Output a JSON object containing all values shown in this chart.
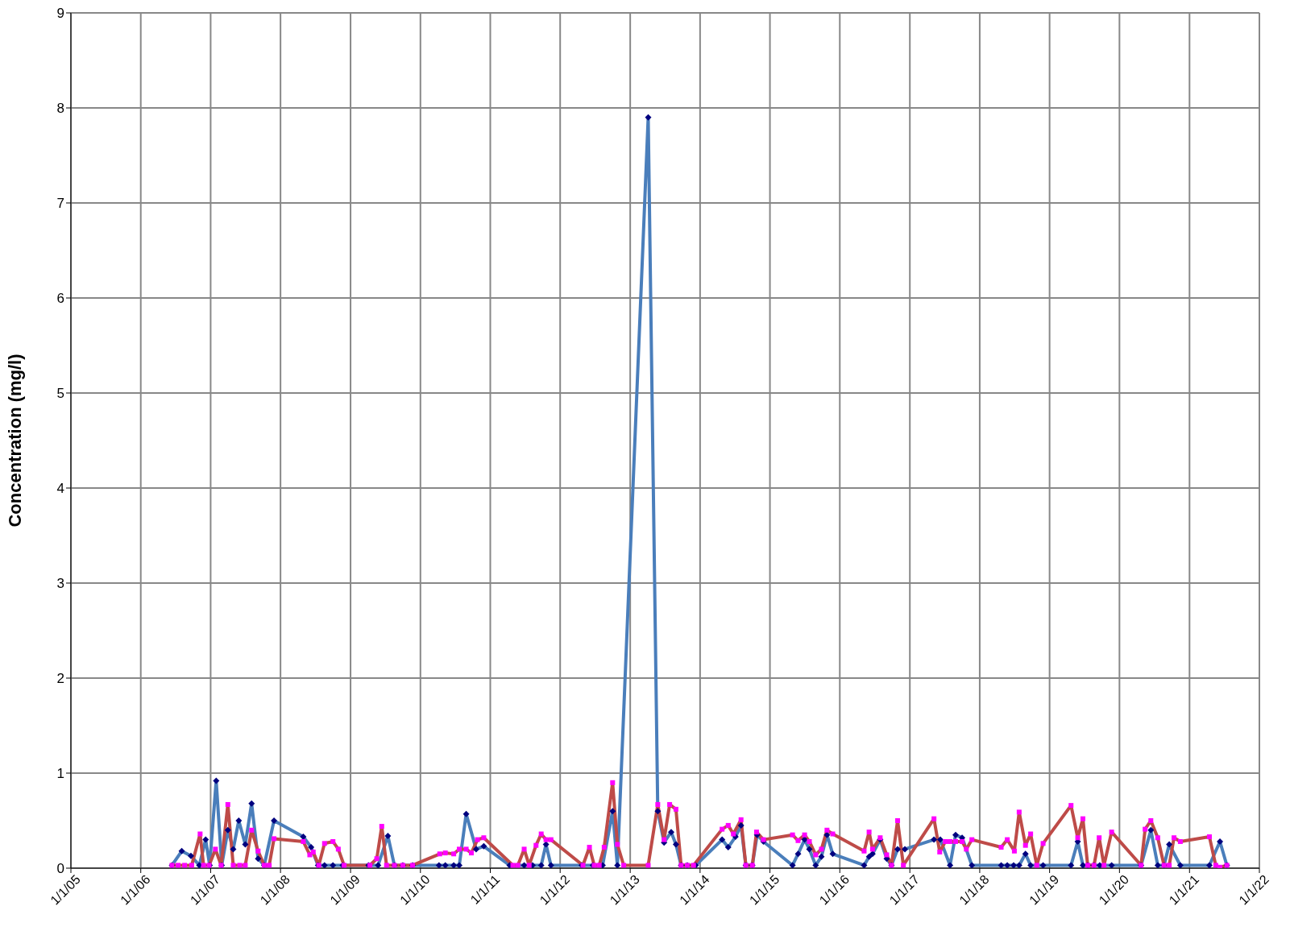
{
  "chart_data": {
    "type": "line",
    "ylabel": "Concentration (mg/l)",
    "xlim": [
      "2005-01-01",
      "2022-01-01"
    ],
    "xticks": [
      {
        "value": "2005-01-01",
        "label": "1/1/05"
      },
      {
        "value": "2006-01-01",
        "label": "1/1/06"
      },
      {
        "value": "2007-01-01",
        "label": "1/1/07"
      },
      {
        "value": "2008-01-01",
        "label": "1/1/08"
      },
      {
        "value": "2009-01-01",
        "label": "1/1/09"
      },
      {
        "value": "2010-01-01",
        "label": "1/1/10"
      },
      {
        "value": "2011-01-01",
        "label": "1/1/11"
      },
      {
        "value": "2012-01-01",
        "label": "1/1/12"
      },
      {
        "value": "2013-01-01",
        "label": "1/1/13"
      },
      {
        "value": "2014-01-01",
        "label": "1/1/14"
      },
      {
        "value": "2015-01-01",
        "label": "1/1/15"
      },
      {
        "value": "2016-01-01",
        "label": "1/1/16"
      },
      {
        "value": "2017-01-01",
        "label": "1/1/17"
      },
      {
        "value": "2018-01-01",
        "label": "1/1/18"
      },
      {
        "value": "2019-01-01",
        "label": "1/1/19"
      },
      {
        "value": "2020-01-01",
        "label": "1/1/20"
      },
      {
        "value": "2021-01-01",
        "label": "1/1/21"
      },
      {
        "value": "2022-01-01",
        "label": "1/1/22"
      }
    ],
    "ylim": [
      0,
      9
    ],
    "yticks": [
      0,
      1,
      2,
      3,
      4,
      5,
      6,
      7,
      8,
      9
    ],
    "grid": true,
    "line_style": "solid",
    "series": [
      {
        "color": "#4a7ebb",
        "marker": "diamond",
        "x": [
          "2006-06-13",
          "2006-08-03",
          "2006-09-20",
          "2006-11-03",
          "2006-12-06",
          "2006-12-27",
          "2007-01-30",
          "2007-02-28",
          "2007-04-01",
          "2007-04-29",
          "2007-05-28",
          "2007-07-01",
          "2007-08-03",
          "2007-09-06",
          "2007-10-08",
          "2007-11-28",
          "2008-04-29",
          "2008-06-09",
          "2008-07-15",
          "2008-08-18",
          "2008-10-01",
          "2008-11-21",
          "2009-04-05",
          "2009-05-25",
          "2009-07-15",
          "2009-08-18",
          "2009-10-01",
          "2009-11-21",
          "2010-04-08",
          "2010-05-11",
          "2010-06-24",
          "2010-07-23",
          "2010-08-28",
          "2010-10-19",
          "2010-11-28",
          "2011-04-12",
          "2011-06-27",
          "2011-08-10",
          "2011-09-24",
          "2011-10-19",
          "2011-11-14",
          "2012-04-23",
          "2012-06-20",
          "2012-08-10",
          "2012-10-01",
          "2012-10-26",
          "2013-04-05",
          "2013-05-25",
          "2013-06-27",
          "2013-08-03",
          "2013-08-28",
          "2013-09-24",
          "2013-10-26",
          "2013-12-09",
          "2014-04-26",
          "2014-05-28",
          "2014-07-05",
          "2014-08-03",
          "2014-08-28",
          "2014-10-01",
          "2014-10-26",
          "2014-11-28",
          "2015-04-29",
          "2015-05-28",
          "2015-07-01",
          "2015-07-26",
          "2015-08-28",
          "2015-09-27",
          "2015-10-26",
          "2015-11-25",
          "2016-05-07",
          "2016-06-02",
          "2016-06-20",
          "2016-07-30",
          "2016-09-02",
          "2016-09-27",
          "2016-10-29",
          "2016-12-06",
          "2017-05-07",
          "2017-06-09",
          "2017-07-30",
          "2017-08-28",
          "2017-10-01",
          "2017-11-21",
          "2018-04-23",
          "2018-05-25",
          "2018-06-27",
          "2018-07-26",
          "2018-08-28",
          "2018-09-24",
          "2018-11-28",
          "2019-04-23",
          "2019-05-28",
          "2019-06-24",
          "2019-07-19",
          "2019-08-21",
          "2019-09-20",
          "2019-11-21",
          "2020-04-23",
          "2020-06-13",
          "2020-07-19",
          "2020-08-21",
          "2020-09-17",
          "2020-11-14",
          "2021-04-15",
          "2021-06-09",
          "2021-07-15"
        ],
        "values": [
          0.03,
          0.18,
          0.13,
          0.03,
          0.3,
          0.03,
          0.92,
          0.03,
          0.4,
          0.2,
          0.5,
          0.25,
          0.68,
          0.1,
          0.03,
          0.5,
          0.33,
          0.22,
          0.03,
          0.03,
          0.03,
          0.03,
          0.03,
          0.03,
          0.34,
          0.03,
          0.03,
          0.03,
          0.03,
          0.03,
          0.03,
          0.03,
          0.57,
          0.2,
          0.23,
          0.03,
          0.03,
          0.03,
          0.03,
          0.25,
          0.03,
          0.03,
          0.03,
          0.03,
          0.6,
          0.03,
          7.9,
          0.6,
          0.27,
          0.38,
          0.25,
          0.03,
          0.03,
          0.03,
          0.3,
          0.22,
          0.33,
          0.45,
          0.03,
          0.03,
          0.35,
          0.28,
          0.03,
          0.15,
          0.3,
          0.2,
          0.03,
          0.12,
          0.35,
          0.15,
          0.03,
          0.12,
          0.15,
          0.3,
          0.1,
          0.03,
          0.2,
          0.2,
          0.3,
          0.3,
          0.03,
          0.35,
          0.32,
          0.03,
          0.03,
          0.03,
          0.03,
          0.03,
          0.15,
          0.03,
          0.03,
          0.03,
          0.28,
          0.03,
          0.03,
          0.03,
          0.03,
          0.03,
          0.03,
          0.4,
          0.03,
          0.03,
          0.25,
          0.03,
          0.03,
          0.28,
          0.03
        ]
      },
      {
        "color": "#be4b48",
        "marker": "square",
        "x": [
          "2006-06-13",
          "2006-07-15",
          "2006-08-18",
          "2006-09-24",
          "2006-11-07",
          "2006-11-25",
          "2006-12-24",
          "2007-01-26",
          "2007-02-25",
          "2007-04-01",
          "2007-04-29",
          "2007-06-02",
          "2007-07-01",
          "2007-08-03",
          "2007-09-06",
          "2007-10-08",
          "2007-11-03",
          "2007-11-28",
          "2008-04-29",
          "2008-06-02",
          "2008-06-20",
          "2008-07-19",
          "2008-08-18",
          "2008-10-01",
          "2008-10-29",
          "2008-11-28",
          "2009-04-12",
          "2009-05-18",
          "2009-06-13",
          "2009-07-08",
          "2009-08-18",
          "2009-10-01",
          "2009-11-21",
          "2010-04-12",
          "2010-05-11",
          "2010-06-24",
          "2010-07-23",
          "2010-08-28",
          "2010-09-24",
          "2010-10-26",
          "2010-11-28",
          "2011-04-29",
          "2011-05-25",
          "2011-06-27",
          "2011-07-23",
          "2011-08-28",
          "2011-09-24",
          "2011-10-19",
          "2011-11-14",
          "2012-04-29",
          "2012-06-02",
          "2012-06-27",
          "2012-07-23",
          "2012-08-18",
          "2012-10-01",
          "2012-10-26",
          "2012-11-28",
          "2013-04-05",
          "2013-05-25",
          "2013-06-27",
          "2013-07-26",
          "2013-08-28",
          "2013-09-24",
          "2013-10-26",
          "2013-11-28",
          "2014-04-26",
          "2014-05-28",
          "2014-06-24",
          "2014-08-03",
          "2014-08-28",
          "2014-10-01",
          "2014-10-23",
          "2014-11-28",
          "2015-04-29",
          "2015-05-28",
          "2015-07-01",
          "2015-07-26",
          "2015-08-28",
          "2015-09-27",
          "2015-10-26",
          "2015-11-25",
          "2016-05-07",
          "2016-06-02",
          "2016-06-20",
          "2016-07-30",
          "2016-09-02",
          "2016-09-27",
          "2016-10-29",
          "2016-11-28",
          "2017-05-07",
          "2017-06-06",
          "2017-07-05",
          "2017-07-30",
          "2017-08-28",
          "2017-10-01",
          "2017-10-23",
          "2017-11-21",
          "2018-04-23",
          "2018-05-25",
          "2018-07-01",
          "2018-07-26",
          "2018-08-28",
          "2018-09-24",
          "2018-10-26",
          "2018-11-28",
          "2019-04-23",
          "2019-05-28",
          "2019-06-24",
          "2019-07-19",
          "2019-08-21",
          "2019-09-17",
          "2019-10-12",
          "2019-11-21",
          "2020-04-23",
          "2020-05-14",
          "2020-06-13",
          "2020-07-19",
          "2020-08-21",
          "2020-09-17",
          "2020-10-12",
          "2020-11-14",
          "2021-04-15",
          "2021-05-18",
          "2021-06-09",
          "2021-07-15"
        ],
        "values": [
          0.03,
          0.03,
          0.03,
          0.03,
          0.36,
          0.03,
          0.03,
          0.2,
          0.03,
          0.67,
          0.03,
          0.03,
          0.03,
          0.4,
          0.18,
          0.03,
          0.03,
          0.31,
          0.28,
          0.14,
          0.17,
          0.03,
          0.26,
          0.28,
          0.2,
          0.03,
          0.03,
          0.1,
          0.44,
          0.03,
          0.03,
          0.03,
          0.03,
          0.15,
          0.16,
          0.15,
          0.2,
          0.2,
          0.16,
          0.3,
          0.32,
          0.03,
          0.03,
          0.2,
          0.03,
          0.24,
          0.36,
          0.3,
          0.3,
          0.03,
          0.22,
          0.03,
          0.03,
          0.22,
          0.9,
          0.25,
          0.03,
          0.03,
          0.67,
          0.3,
          0.67,
          0.62,
          0.03,
          0.03,
          0.03,
          0.41,
          0.45,
          0.36,
          0.51,
          0.03,
          0.03,
          0.38,
          0.3,
          0.35,
          0.29,
          0.35,
          0.28,
          0.14,
          0.2,
          0.4,
          0.36,
          0.18,
          0.38,
          0.2,
          0.32,
          0.14,
          0.03,
          0.5,
          0.03,
          0.52,
          0.17,
          0.28,
          0.28,
          0.28,
          0.28,
          0.2,
          0.3,
          0.22,
          0.3,
          0.18,
          0.59,
          0.24,
          0.36,
          0.03,
          0.26,
          0.66,
          0.32,
          0.52,
          0.03,
          0.03,
          0.32,
          0.03,
          0.38,
          0.03,
          0.41,
          0.5,
          0.32,
          0.03,
          0.03,
          0.32,
          0.28,
          0.33,
          0.03,
          0.01,
          0.03
        ]
      }
    ]
  }
}
